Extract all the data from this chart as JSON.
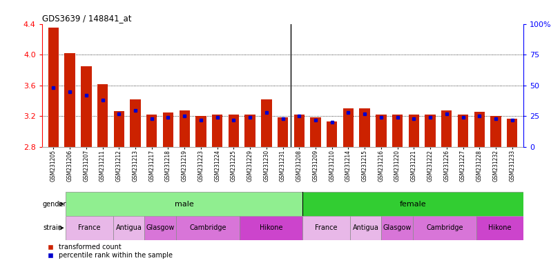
{
  "title": "GDS3639 / 148841_at",
  "samples": [
    "GSM231205",
    "GSM231206",
    "GSM231207",
    "GSM231211",
    "GSM231212",
    "GSM231213",
    "GSM231217",
    "GSM231218",
    "GSM231219",
    "GSM231223",
    "GSM231224",
    "GSM231225",
    "GSM231229",
    "GSM231230",
    "GSM231231",
    "GSM231208",
    "GSM231209",
    "GSM231210",
    "GSM231214",
    "GSM231215",
    "GSM231216",
    "GSM231220",
    "GSM231221",
    "GSM231222",
    "GSM231226",
    "GSM231227",
    "GSM231228",
    "GSM231232",
    "GSM231233"
  ],
  "red_values": [
    4.35,
    4.02,
    3.85,
    3.62,
    3.27,
    3.42,
    3.22,
    3.25,
    3.28,
    3.2,
    3.22,
    3.22,
    3.22,
    3.42,
    3.19,
    3.22,
    3.19,
    3.13,
    3.3,
    3.3,
    3.22,
    3.22,
    3.22,
    3.22,
    3.28,
    3.22,
    3.26,
    3.2,
    3.17
  ],
  "blue_percentiles": [
    48,
    45,
    42,
    38,
    27,
    30,
    23,
    24,
    25,
    22,
    24,
    22,
    24,
    28,
    23,
    25,
    22,
    20,
    28,
    27,
    24,
    24,
    23,
    24,
    27,
    24,
    25,
    23,
    22
  ],
  "y_min": 2.8,
  "y_max": 4.4,
  "y_ticks_left": [
    2.8,
    3.2,
    3.6,
    4.0,
    4.4
  ],
  "y_ticks_right_pct": [
    0,
    25,
    50,
    75,
    100
  ],
  "bar_color": "#cc2200",
  "dot_color": "#0000cc",
  "gender_male_color": "#90ee90",
  "gender_female_color": "#32cd32",
  "male_count": 15,
  "female_count": 14,
  "male_strain_spans": [
    3,
    2,
    2,
    4,
    4
  ],
  "female_strain_spans": [
    3,
    2,
    2,
    4,
    3
  ],
  "strain_labels": [
    "France",
    "Antigua",
    "Glasgow",
    "Cambridge",
    "Hikone"
  ],
  "strain_colors": [
    "#e8b8e8",
    "#e8b8e8",
    "#d875d8",
    "#d875d8",
    "#cc44cc"
  ],
  "grid_lines": [
    3.2,
    3.6,
    4.0
  ],
  "legend_items": [
    "transformed count",
    "percentile rank within the sample"
  ]
}
